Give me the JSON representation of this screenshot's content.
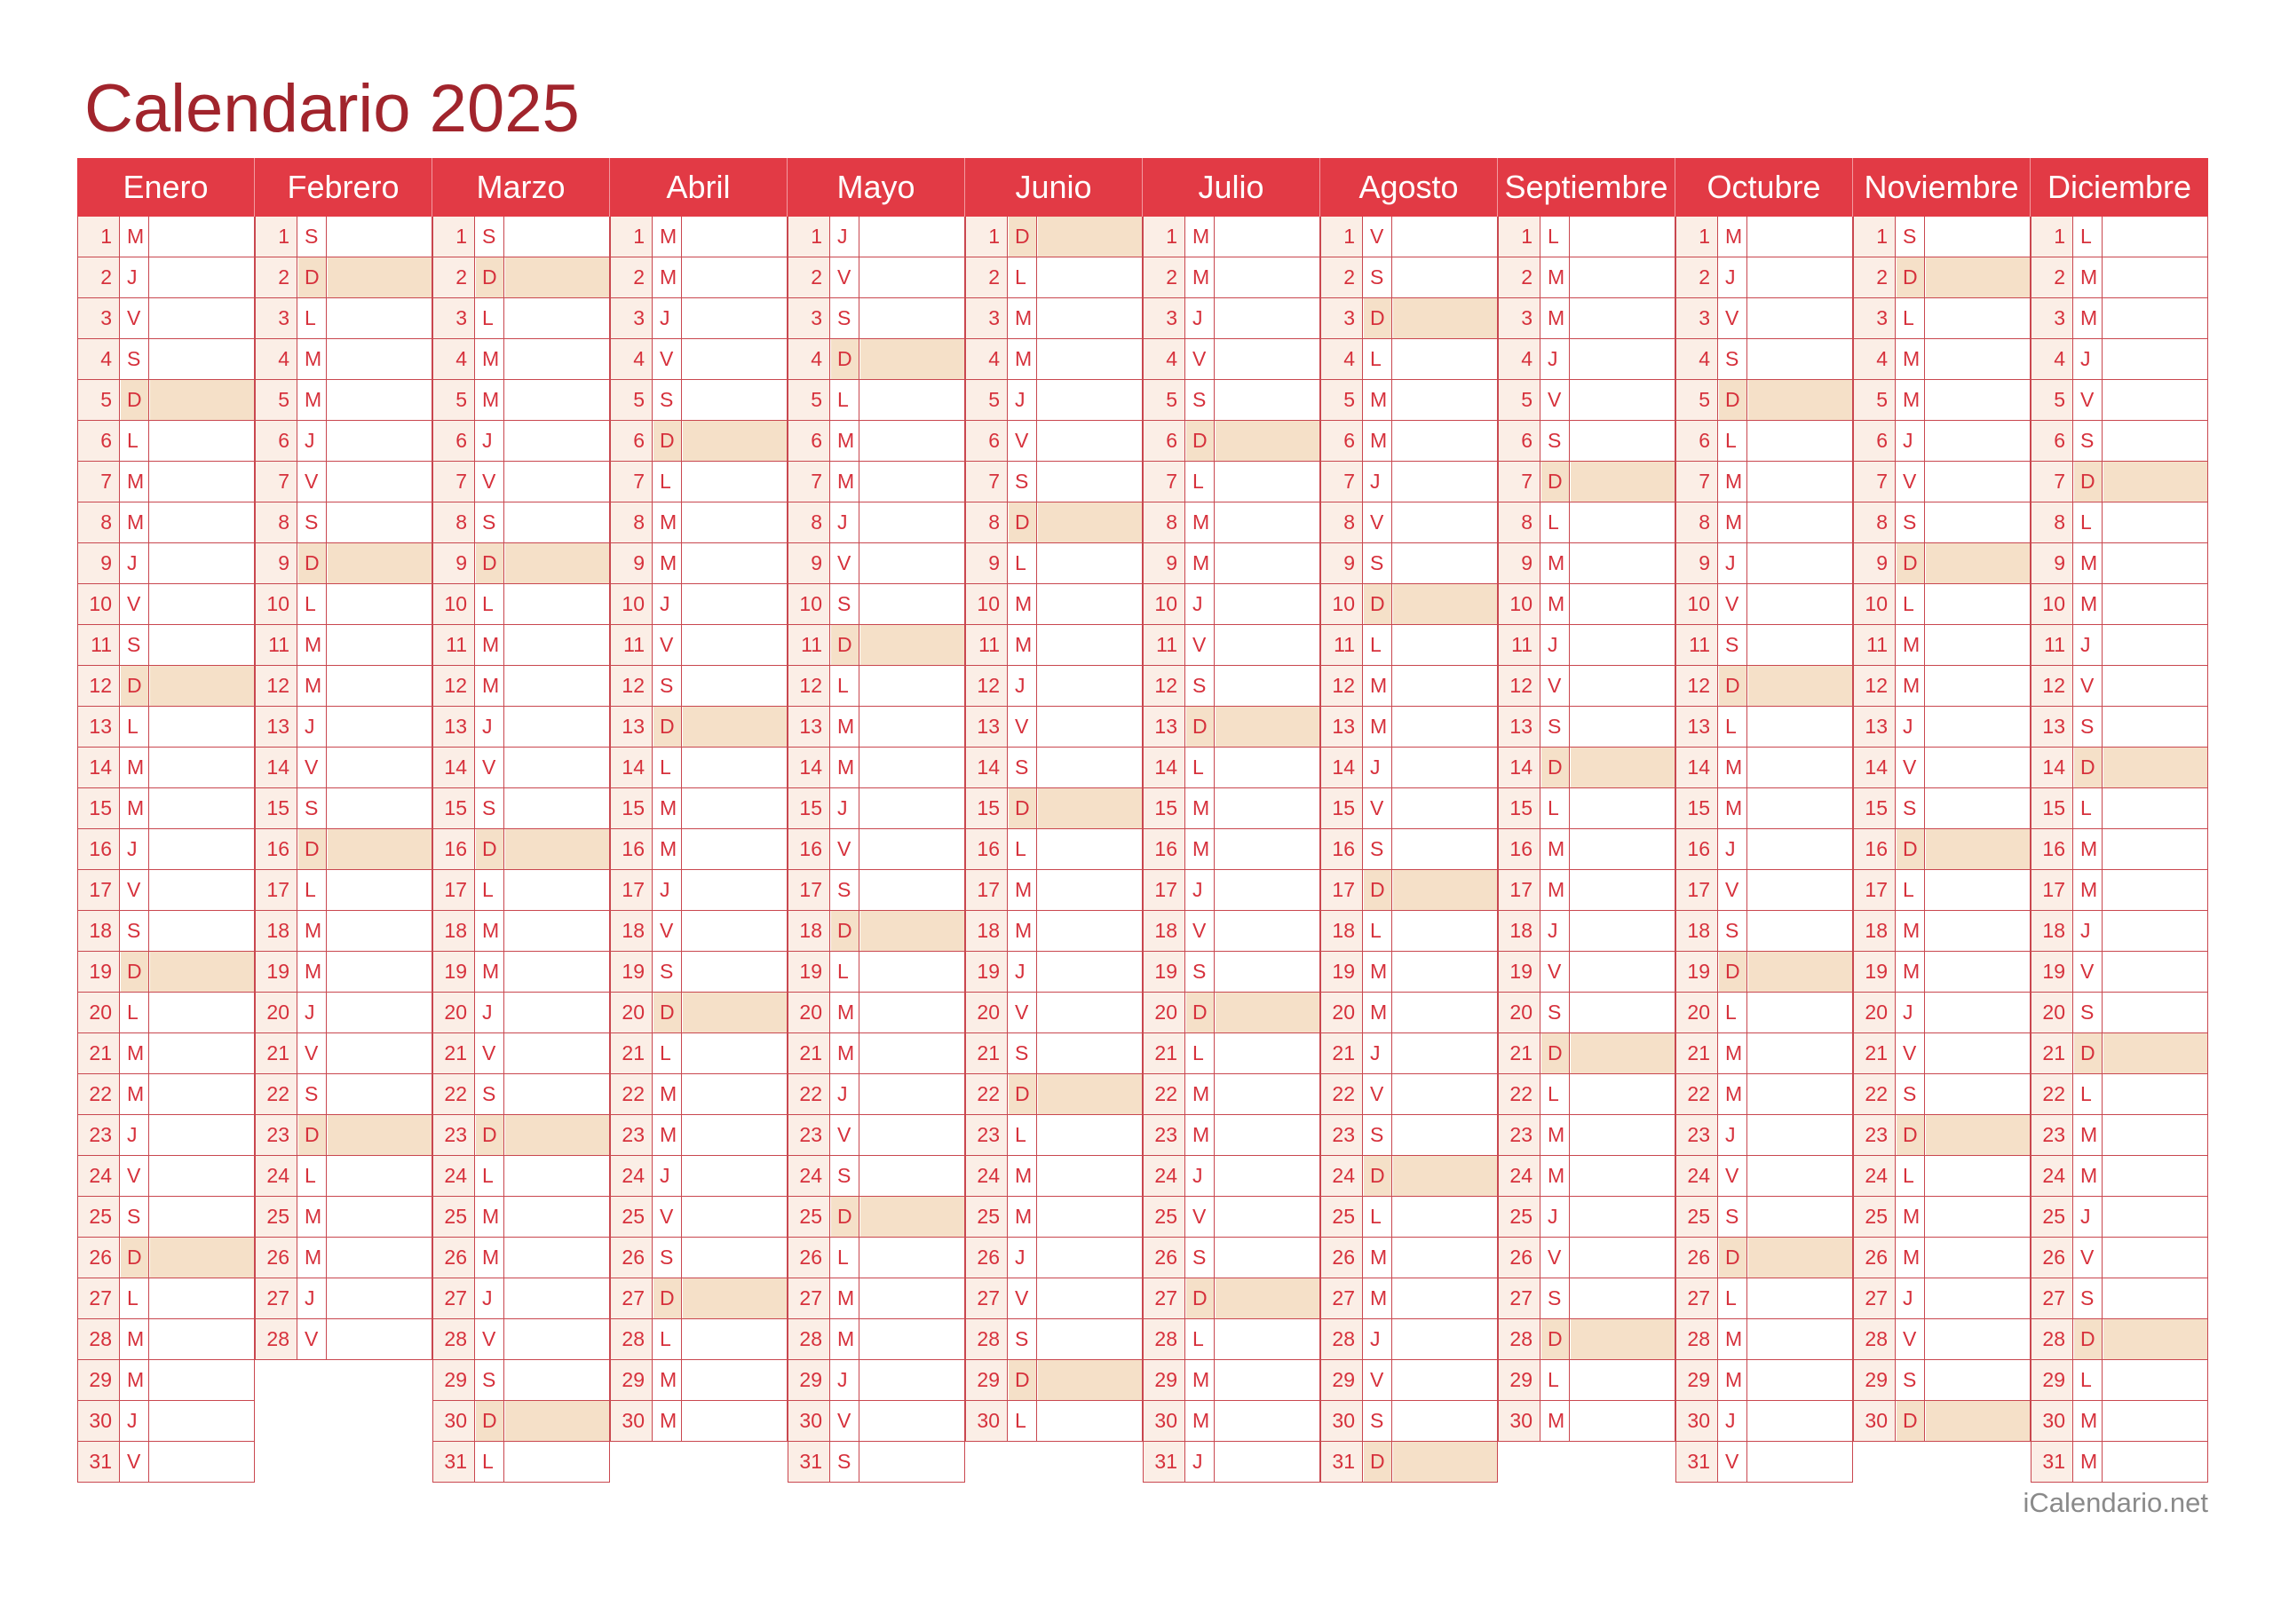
{
  "title": "Calendario 2025",
  "footer": "iCalendario.net",
  "colors": {
    "title": "#a1242c",
    "header_bg": "#e23a45",
    "header_text": "#ffffff",
    "grid_line": "#c9474f",
    "day_text": "#d6313c",
    "number_bg": "#fbeee6",
    "sunday_bg": "#f5e0c8",
    "footer_text": "#8a8a8a"
  },
  "months": [
    {
      "name": "Enero",
      "days": [
        "M",
        "J",
        "V",
        "S",
        "D",
        "L",
        "M",
        "M",
        "J",
        "V",
        "S",
        "D",
        "L",
        "M",
        "M",
        "J",
        "V",
        "S",
        "D",
        "L",
        "M",
        "M",
        "J",
        "V",
        "S",
        "D",
        "L",
        "M",
        "M",
        "J",
        "V"
      ]
    },
    {
      "name": "Febrero",
      "days": [
        "S",
        "D",
        "L",
        "M",
        "M",
        "J",
        "V",
        "S",
        "D",
        "L",
        "M",
        "M",
        "J",
        "V",
        "S",
        "D",
        "L",
        "M",
        "M",
        "J",
        "V",
        "S",
        "D",
        "L",
        "M",
        "M",
        "J",
        "V"
      ]
    },
    {
      "name": "Marzo",
      "days": [
        "S",
        "D",
        "L",
        "M",
        "M",
        "J",
        "V",
        "S",
        "D",
        "L",
        "M",
        "M",
        "J",
        "V",
        "S",
        "D",
        "L",
        "M",
        "M",
        "J",
        "V",
        "S",
        "D",
        "L",
        "M",
        "M",
        "J",
        "V",
        "S",
        "D",
        "L"
      ]
    },
    {
      "name": "Abril",
      "days": [
        "M",
        "M",
        "J",
        "V",
        "S",
        "D",
        "L",
        "M",
        "M",
        "J",
        "V",
        "S",
        "D",
        "L",
        "M",
        "M",
        "J",
        "V",
        "S",
        "D",
        "L",
        "M",
        "M",
        "J",
        "V",
        "S",
        "D",
        "L",
        "M",
        "M"
      ]
    },
    {
      "name": "Mayo",
      "days": [
        "J",
        "V",
        "S",
        "D",
        "L",
        "M",
        "M",
        "J",
        "V",
        "S",
        "D",
        "L",
        "M",
        "M",
        "J",
        "V",
        "S",
        "D",
        "L",
        "M",
        "M",
        "J",
        "V",
        "S",
        "D",
        "L",
        "M",
        "M",
        "J",
        "V",
        "S"
      ]
    },
    {
      "name": "Junio",
      "days": [
        "D",
        "L",
        "M",
        "M",
        "J",
        "V",
        "S",
        "D",
        "L",
        "M",
        "M",
        "J",
        "V",
        "S",
        "D",
        "L",
        "M",
        "M",
        "J",
        "V",
        "S",
        "D",
        "L",
        "M",
        "M",
        "J",
        "V",
        "S",
        "D",
        "L"
      ]
    },
    {
      "name": "Julio",
      "days": [
        "M",
        "M",
        "J",
        "V",
        "S",
        "D",
        "L",
        "M",
        "M",
        "J",
        "V",
        "S",
        "D",
        "L",
        "M",
        "M",
        "J",
        "V",
        "S",
        "D",
        "L",
        "M",
        "M",
        "J",
        "V",
        "S",
        "D",
        "L",
        "M",
        "M",
        "J"
      ]
    },
    {
      "name": "Agosto",
      "days": [
        "V",
        "S",
        "D",
        "L",
        "M",
        "M",
        "J",
        "V",
        "S",
        "D",
        "L",
        "M",
        "M",
        "J",
        "V",
        "S",
        "D",
        "L",
        "M",
        "M",
        "J",
        "V",
        "S",
        "D",
        "L",
        "M",
        "M",
        "J",
        "V",
        "S",
        "D"
      ]
    },
    {
      "name": "Septiembre",
      "days": [
        "L",
        "M",
        "M",
        "J",
        "V",
        "S",
        "D",
        "L",
        "M",
        "M",
        "J",
        "V",
        "S",
        "D",
        "L",
        "M",
        "M",
        "J",
        "V",
        "S",
        "D",
        "L",
        "M",
        "M",
        "J",
        "V",
        "S",
        "D",
        "L",
        "M"
      ]
    },
    {
      "name": "Octubre",
      "days": [
        "M",
        "J",
        "V",
        "S",
        "D",
        "L",
        "M",
        "M",
        "J",
        "V",
        "S",
        "D",
        "L",
        "M",
        "M",
        "J",
        "V",
        "S",
        "D",
        "L",
        "M",
        "M",
        "J",
        "V",
        "S",
        "D",
        "L",
        "M",
        "M",
        "J",
        "V"
      ]
    },
    {
      "name": "Noviembre",
      "days": [
        "S",
        "D",
        "L",
        "M",
        "M",
        "J",
        "V",
        "S",
        "D",
        "L",
        "M",
        "M",
        "J",
        "V",
        "S",
        "D",
        "L",
        "M",
        "M",
        "J",
        "V",
        "S",
        "D",
        "L",
        "M",
        "M",
        "J",
        "V",
        "S",
        "D"
      ]
    },
    {
      "name": "Diciembre",
      "days": [
        "L",
        "M",
        "M",
        "J",
        "V",
        "S",
        "D",
        "L",
        "M",
        "M",
        "J",
        "V",
        "S",
        "D",
        "L",
        "M",
        "M",
        "J",
        "V",
        "S",
        "D",
        "L",
        "M",
        "M",
        "J",
        "V",
        "S",
        "D",
        "L",
        "M",
        "M"
      ]
    }
  ]
}
